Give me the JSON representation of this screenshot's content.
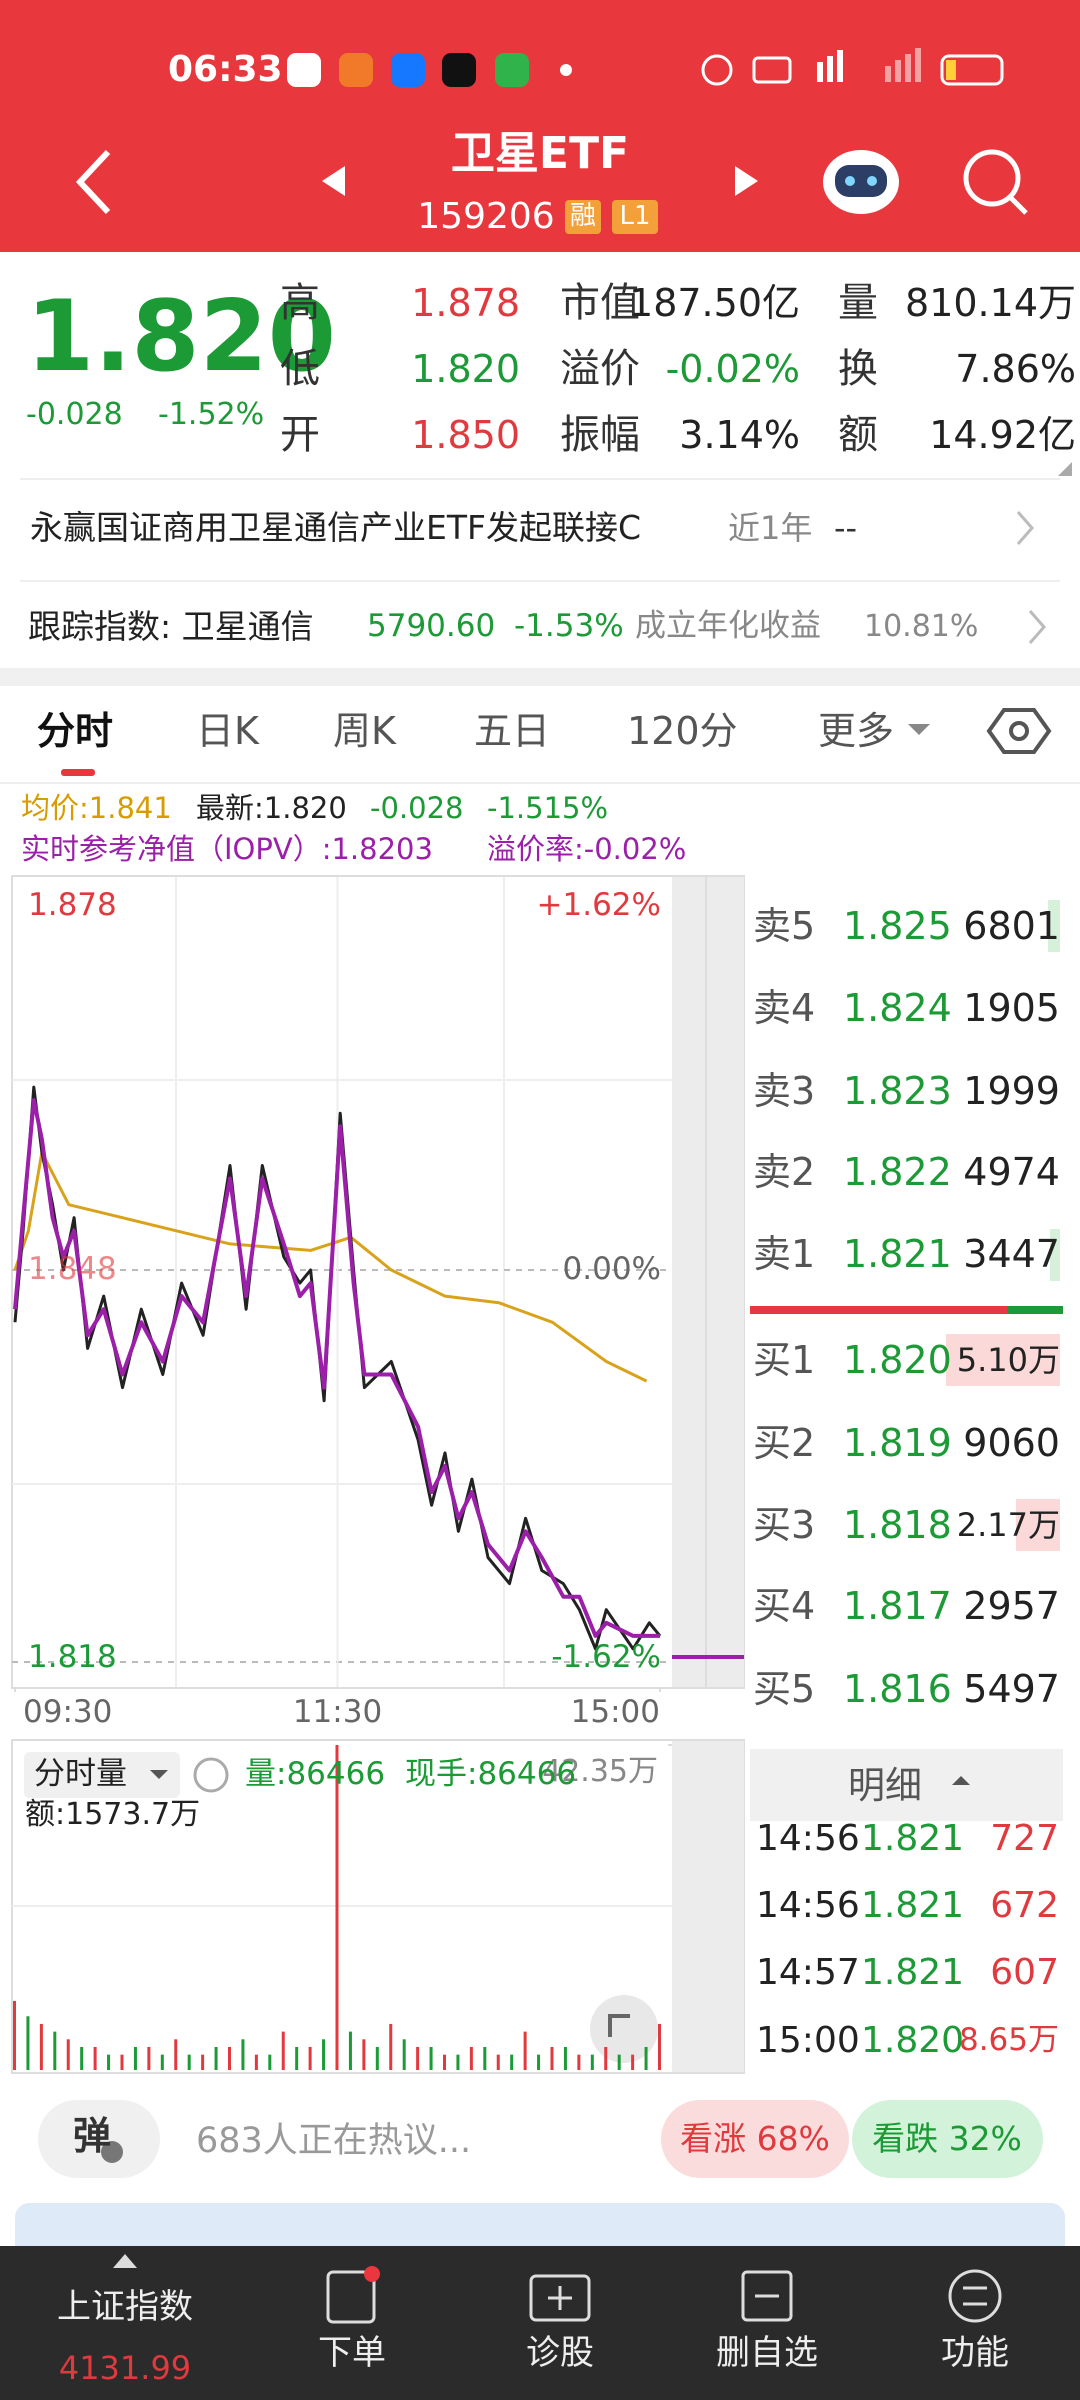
{
  "status_bar": {
    "time": "06:33"
  },
  "header": {
    "title": "卫星ETF",
    "code": "159206",
    "tags": [
      "融",
      "L1"
    ]
  },
  "quote": {
    "price": "1.820",
    "change": "-0.028",
    "change_pct": "-1.52%",
    "stats": [
      [
        {
          "label": "高",
          "value": "1.878"
        },
        {
          "label": "市值",
          "value": "187.50亿"
        },
        {
          "label": "量",
          "value": "810.14万"
        }
      ],
      [
        {
          "label": "低",
          "value": "1.820"
        },
        {
          "label": "溢价",
          "value": "-0.02%"
        },
        {
          "label": "换",
          "value": "7.86%"
        }
      ],
      [
        {
          "label": "开",
          "value": "1.850"
        },
        {
          "label": "振幅",
          "value": "3.14%"
        },
        {
          "label": "额",
          "value": "14.92亿"
        }
      ]
    ]
  },
  "fund": {
    "name": "永赢国证商用卫星通信产业ETF发起联接C",
    "period": "近1年",
    "return": "--"
  },
  "tracking": {
    "label": "跟踪指数: 卫星通信",
    "index_value": "5790.60",
    "index_change": "-1.53%",
    "annual_label": "成立年化收益",
    "annual_value": "10.81%"
  },
  "tabs": [
    "分时",
    "日K",
    "周K",
    "五日",
    "120分",
    "更多"
  ],
  "legend": {
    "row1": [
      "均价:1.841",
      "最新:1.820",
      "-0.028",
      "-1.515%"
    ],
    "row2": [
      "实时参考净值（IOPV）:1.8203",
      "溢价率:-0.02%"
    ]
  },
  "chart_data": [
    {
      "type": "line",
      "xlim": [
        0,
        240
      ],
      "xticks": [
        {
          "value": 0,
          "label": "09:30"
        },
        {
          "value": 120,
          "label": "11:30"
        },
        {
          "value": 240,
          "label": "15:00"
        }
      ],
      "ylim": [
        1.818,
        1.878
      ],
      "yticks": [
        1.818,
        1.848,
        1.878
      ],
      "y2lim": [
        -1.62,
        1.62
      ],
      "y2ticks": [
        {
          "value": -1.62,
          "label": "-1.62%"
        },
        {
          "value": 0,
          "label": "0.00%"
        },
        {
          "value": 1.62,
          "label": "+1.62%"
        }
      ],
      "series": [
        {
          "color": "#d9a21b",
          "x": [
            0,
            5,
            10,
            20,
            40,
            60,
            80,
            110,
            125,
            140,
            160,
            180,
            200,
            220,
            235
          ],
          "values": [
            1.848,
            1.851,
            1.857,
            1.853,
            1.852,
            1.851,
            1.85,
            1.8495,
            1.8505,
            1.848,
            1.846,
            1.8455,
            1.844,
            1.841,
            1.8395
          ]
        },
        {
          "color": "#222222",
          "x": [
            0,
            3,
            7,
            10,
            14,
            18,
            22,
            27,
            33,
            40,
            47,
            55,
            62,
            70,
            80,
            86,
            92,
            100,
            106,
            110,
            115,
            121,
            126,
            130,
            140,
            150,
            155,
            160,
            165,
            170,
            176,
            184,
            190,
            196,
            204,
            210,
            216,
            220,
            230,
            236,
            240
          ],
          "values": [
            1.844,
            1.851,
            1.862,
            1.857,
            1.853,
            1.848,
            1.852,
            1.842,
            1.846,
            1.839,
            1.845,
            1.84,
            1.847,
            1.843,
            1.856,
            1.845,
            1.856,
            1.849,
            1.847,
            1.848,
            1.838,
            1.86,
            1.848,
            1.839,
            1.841,
            1.835,
            1.83,
            1.834,
            1.828,
            1.832,
            1.826,
            1.824,
            1.829,
            1.825,
            1.824,
            1.822,
            1.819,
            1.822,
            1.819,
            1.821,
            1.82
          ]
        },
        {
          "color": "#9b1fa8",
          "x": [
            0,
            3,
            7,
            10,
            14,
            18,
            22,
            27,
            33,
            40,
            47,
            55,
            62,
            70,
            80,
            86,
            92,
            100,
            106,
            110,
            115,
            121,
            126,
            130,
            140,
            150,
            155,
            160,
            165,
            170,
            176,
            184,
            190,
            196,
            204,
            210,
            216,
            220,
            230,
            236,
            240
          ],
          "values": [
            1.845,
            1.852,
            1.861,
            1.858,
            1.852,
            1.849,
            1.851,
            1.843,
            1.845,
            1.84,
            1.844,
            1.841,
            1.846,
            1.844,
            1.855,
            1.846,
            1.855,
            1.85,
            1.846,
            1.847,
            1.839,
            1.859,
            1.847,
            1.84,
            1.84,
            1.836,
            1.831,
            1.833,
            1.829,
            1.831,
            1.827,
            1.825,
            1.828,
            1.826,
            1.823,
            1.823,
            1.82,
            1.821,
            1.82,
            1.82,
            1.82
          ]
        }
      ]
    },
    {
      "type": "bar",
      "xlim": [
        0,
        240
      ],
      "ylim": [
        0,
        42.35
      ],
      "yticks": [
        {
          "value": 42.35,
          "label": "42.35万"
        }
      ],
      "series": [
        {
          "color": "#e0393e",
          "x": [
            0,
            10,
            20,
            30,
            40,
            50,
            60,
            70,
            80,
            90,
            100,
            110,
            120,
            130,
            140,
            150,
            160,
            170,
            180,
            190,
            200,
            210,
            220,
            230,
            240
          ],
          "values": [
            9,
            6,
            4,
            3,
            2,
            3,
            4,
            2,
            3,
            2,
            5,
            3,
            42.35,
            4,
            6,
            3,
            2,
            3,
            2,
            5,
            3,
            2,
            3,
            2,
            6
          ]
        },
        {
          "color": "#1b9a36",
          "x": [
            5,
            15,
            25,
            35,
            45,
            55,
            65,
            75,
            85,
            95,
            105,
            115,
            125,
            135,
            145,
            155,
            165,
            175,
            185,
            195,
            205,
            215,
            225,
            235
          ],
          "values": [
            7,
            5,
            3,
            2,
            3,
            2,
            2,
            3,
            4,
            2,
            3,
            4,
            5,
            3,
            4,
            3,
            2,
            3,
            2,
            2,
            3,
            2,
            2,
            3
          ]
        }
      ]
    }
  ],
  "order_book": {
    "asks": [
      {
        "label": "卖5",
        "price": "1.825",
        "volume": "6801"
      },
      {
        "label": "卖4",
        "price": "1.824",
        "volume": "1905"
      },
      {
        "label": "卖3",
        "price": "1.823",
        "volume": "1999"
      },
      {
        "label": "卖2",
        "price": "1.822",
        "volume": "4974"
      },
      {
        "label": "卖1",
        "price": "1.821",
        "volume": "3447"
      }
    ],
    "bids": [
      {
        "label": "买1",
        "price": "1.820",
        "volume": "5.10万"
      },
      {
        "label": "买2",
        "price": "1.819",
        "volume": "9060"
      },
      {
        "label": "买3",
        "price": "1.818",
        "volume": "2.17万"
      },
      {
        "label": "买4",
        "price": "1.817",
        "volume": "2957"
      },
      {
        "label": "买5",
        "price": "1.816",
        "volume": "5497"
      }
    ]
  },
  "volume_panel": {
    "selector": "分时量",
    "volume": "量:86466",
    "current": "现手:86466",
    "amount": "额:1573.7万"
  },
  "trades": {
    "title": "明细",
    "rows": [
      [
        "14:56",
        "1.821",
        "727"
      ],
      [
        "14:56",
        "1.821",
        "672"
      ],
      [
        "14:57",
        "1.821",
        "607"
      ],
      [
        "15:00",
        "1.820",
        "8.65万"
      ]
    ]
  },
  "comments": {
    "button": "弹",
    "text": "683人正在热议...",
    "bull": "看涨 68%",
    "bear": "看跌 32%"
  },
  "nav": {
    "index_name": "上证指数",
    "index_value": "4131.99",
    "items": [
      "下单",
      "诊股",
      "删自选",
      "功能"
    ]
  }
}
